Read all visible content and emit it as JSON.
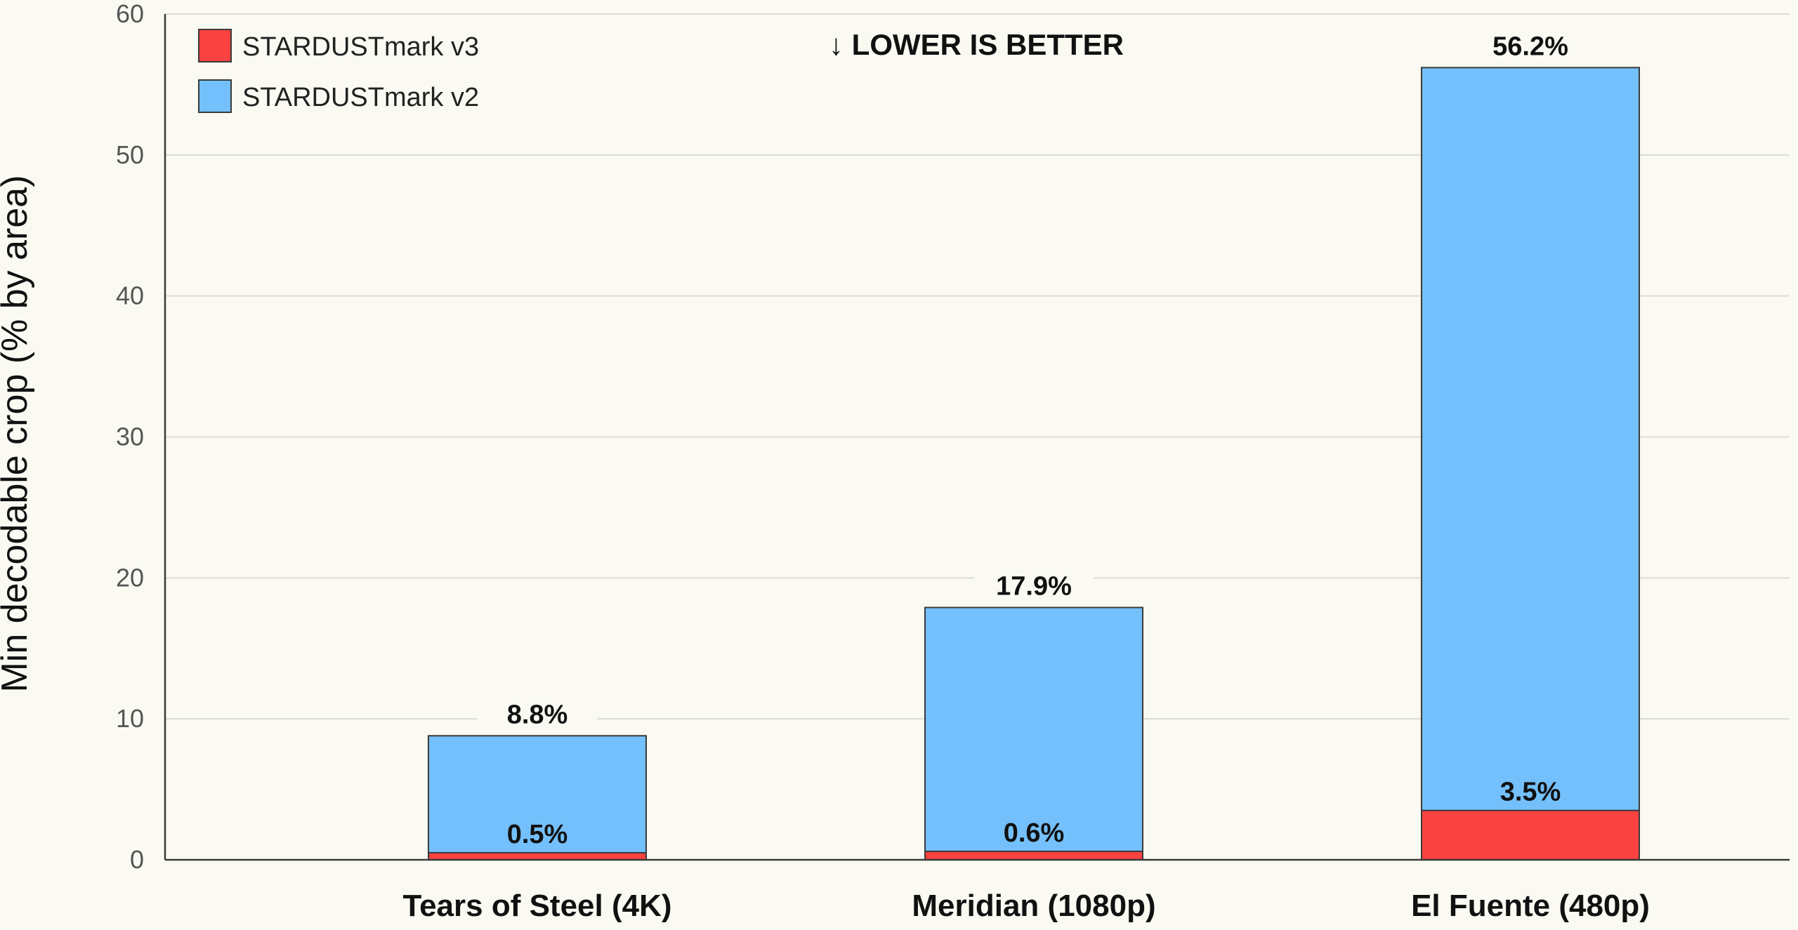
{
  "chart_data": {
    "type": "bar",
    "stacked": "overlay",
    "categories": [
      "Tears of Steel (4K)",
      "Meridian (1080p)",
      "El Fuente (480p)"
    ],
    "series": [
      {
        "name": "STARDUSTmark v2",
        "color": "#74c0fc",
        "values": [
          8.8,
          17.9,
          56.2
        ],
        "labels": [
          "8.8%",
          "17.9%",
          "56.2%"
        ]
      },
      {
        "name": "STARDUSTmark v3",
        "color": "#fa4340",
        "values": [
          0.5,
          0.6,
          3.5
        ],
        "labels": [
          "0.5%",
          "0.6%",
          "3.5%"
        ]
      }
    ],
    "ylabel": "Min decodable crop (% by area)",
    "xlabel": "",
    "ylim": [
      0,
      60
    ],
    "yticks": [
      "0",
      "10",
      "20",
      "30",
      "40",
      "50",
      "60"
    ],
    "grid": true,
    "legend_position": "top-left",
    "legend": [
      {
        "name": "STARDUSTmark v3",
        "color": "#fa4340"
      },
      {
        "name": "STARDUSTmark v2",
        "color": "#74c0fc"
      }
    ],
    "annotation": "↓ LOWER IS BETTER"
  }
}
